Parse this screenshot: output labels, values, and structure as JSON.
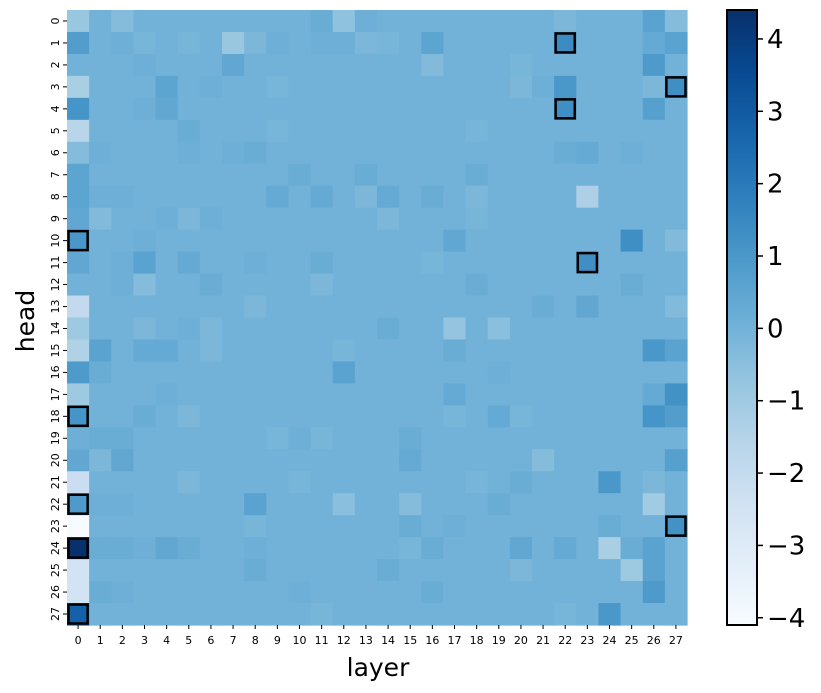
{
  "chart_data": {
    "type": "heatmap",
    "xlabel": "layer",
    "ylabel": "head",
    "x": [
      0,
      1,
      2,
      3,
      4,
      5,
      6,
      7,
      8,
      9,
      10,
      11,
      12,
      13,
      14,
      15,
      16,
      17,
      18,
      19,
      20,
      21,
      22,
      23,
      24,
      25,
      26,
      27
    ],
    "y": [
      0,
      1,
      2,
      3,
      4,
      5,
      6,
      7,
      8,
      9,
      10,
      11,
      12,
      13,
      14,
      15,
      16,
      17,
      18,
      19,
      20,
      21,
      22,
      23,
      24,
      25,
      26,
      27
    ],
    "colorbar": {
      "range": [
        -4.1,
        4.4
      ],
      "ticks": [
        -4,
        -3,
        -2,
        -1,
        0,
        1,
        2,
        3,
        4
      ],
      "tick_labels": [
        "−4",
        "−3",
        "−2",
        "−1",
        "0",
        "1",
        "2",
        "3",
        "4"
      ],
      "colormap": "Blues"
    },
    "values": [
      [
        -0.8,
        0.0,
        -0.4,
        0.0,
        0.0,
        0.0,
        0.0,
        0.0,
        0.0,
        0.0,
        0.0,
        0.2,
        -0.6,
        0.1,
        0.0,
        0.0,
        0.0,
        0.0,
        0.0,
        0.0,
        0.0,
        0.0,
        -0.2,
        0.0,
        0.0,
        0.0,
        0.6,
        -0.4
      ],
      [
        0.8,
        0.0,
        0.1,
        -0.1,
        0.0,
        -0.1,
        0.0,
        -0.8,
        -0.2,
        0.1,
        0.0,
        0.1,
        0.1,
        -0.2,
        -0.1,
        0.0,
        0.5,
        0.0,
        0.0,
        0.0,
        0.0,
        0.0,
        1.4,
        0.0,
        0.0,
        0.0,
        0.3,
        0.6
      ],
      [
        0.0,
        0.0,
        0.0,
        0.1,
        0.0,
        0.0,
        0.0,
        0.4,
        0.0,
        0.0,
        0.0,
        0.0,
        0.0,
        0.0,
        0.0,
        0.0,
        -0.3,
        0.0,
        0.0,
        0.0,
        -0.1,
        0.0,
        0.0,
        0.0,
        0.0,
        0.0,
        0.9,
        0.0
      ],
      [
        -1.2,
        0.0,
        0.0,
        0.0,
        0.5,
        0.0,
        0.1,
        0.0,
        0.0,
        -0.1,
        0.0,
        0.0,
        0.0,
        0.0,
        0.0,
        0.0,
        0.0,
        0.0,
        0.0,
        0.0,
        -0.2,
        0.1,
        1.0,
        0.0,
        0.0,
        0.0,
        -0.2,
        1.3
      ],
      [
        1.1,
        0.0,
        0.0,
        0.1,
        0.4,
        0.0,
        0.0,
        0.0,
        0.0,
        0.0,
        0.0,
        0.0,
        0.0,
        0.0,
        0.0,
        0.0,
        0.0,
        0.0,
        0.0,
        0.0,
        0.0,
        0.0,
        1.3,
        0.0,
        0.0,
        0.0,
        0.7,
        0.0
      ],
      [
        -1.6,
        0.0,
        0.0,
        0.0,
        0.0,
        0.2,
        0.0,
        0.0,
        0.0,
        -0.1,
        0.0,
        0.0,
        0.0,
        0.0,
        0.0,
        0.0,
        0.0,
        0.0,
        -0.1,
        0.0,
        0.0,
        0.0,
        0.0,
        0.0,
        0.0,
        0.0,
        0.0,
        0.0
      ],
      [
        -0.4,
        0.1,
        0.0,
        0.0,
        0.0,
        0.1,
        0.0,
        0.1,
        0.2,
        0.0,
        0.0,
        0.0,
        0.0,
        0.0,
        0.0,
        0.0,
        0.0,
        0.0,
        0.0,
        0.0,
        0.0,
        0.0,
        0.2,
        0.3,
        0.0,
        0.1,
        0.0,
        0.0
      ],
      [
        0.5,
        0.0,
        0.0,
        0.0,
        0.0,
        0.0,
        0.0,
        0.0,
        0.0,
        0.0,
        0.2,
        0.0,
        0.0,
        0.2,
        0.0,
        0.0,
        0.0,
        0.0,
        0.2,
        0.0,
        0.0,
        0.0,
        0.0,
        0.0,
        0.0,
        0.0,
        0.0,
        0.0
      ],
      [
        0.5,
        0.1,
        0.1,
        0.0,
        0.0,
        0.0,
        0.0,
        0.0,
        0.0,
        0.3,
        0.0,
        0.3,
        0.0,
        -0.2,
        0.3,
        0.0,
        0.2,
        0.0,
        -0.2,
        0.0,
        0.0,
        0.0,
        0.0,
        -1.3,
        0.0,
        0.0,
        0.0,
        0.0
      ],
      [
        0.4,
        -0.3,
        0.0,
        0.0,
        0.1,
        -0.2,
        0.1,
        0.0,
        0.0,
        0.0,
        0.0,
        0.0,
        0.0,
        0.0,
        -0.2,
        0.0,
        0.0,
        0.0,
        -0.1,
        0.0,
        0.0,
        0.0,
        0.0,
        0.0,
        0.0,
        0.0,
        0.0,
        0.0
      ],
      [
        1.0,
        0.0,
        0.0,
        0.1,
        0.0,
        0.0,
        0.0,
        0.0,
        0.0,
        0.0,
        0.0,
        0.0,
        0.0,
        0.0,
        0.0,
        0.0,
        0.0,
        0.4,
        0.0,
        0.0,
        0.0,
        0.0,
        0.0,
        0.0,
        0.0,
        1.3,
        0.0,
        -0.3
      ],
      [
        0.4,
        0.0,
        0.1,
        0.6,
        0.0,
        0.3,
        0.0,
        0.0,
        0.1,
        0.0,
        0.0,
        0.2,
        0.0,
        0.0,
        0.0,
        0.0,
        -0.1,
        0.0,
        0.0,
        0.0,
        0.0,
        0.0,
        0.0,
        1.3,
        0.0,
        0.0,
        0.0,
        0.0
      ],
      [
        0.0,
        0.0,
        0.1,
        -0.4,
        0.0,
        0.0,
        0.2,
        0.0,
        0.0,
        0.0,
        0.0,
        -0.2,
        0.0,
        0.0,
        0.0,
        0.0,
        0.0,
        0.0,
        0.2,
        0.0,
        0.0,
        0.0,
        0.0,
        0.0,
        0.0,
        0.2,
        0.0,
        0.0
      ],
      [
        -1.9,
        0.0,
        0.0,
        0.0,
        0.0,
        0.0,
        0.0,
        0.0,
        -0.2,
        0.0,
        0.0,
        0.0,
        0.0,
        0.0,
        0.0,
        0.0,
        0.0,
        0.0,
        0.0,
        0.0,
        0.0,
        0.2,
        0.0,
        0.4,
        0.0,
        0.0,
        0.0,
        -0.3
      ],
      [
        -0.9,
        0.0,
        0.0,
        -0.2,
        0.0,
        0.1,
        -0.2,
        0.0,
        0.0,
        0.0,
        0.0,
        0.0,
        0.0,
        0.0,
        0.2,
        0.0,
        0.0,
        -0.7,
        0.0,
        -0.5,
        0.0,
        0.0,
        0.0,
        0.0,
        0.0,
        0.0,
        0.0,
        0.0
      ],
      [
        -1.4,
        0.6,
        0.0,
        0.3,
        0.3,
        0.0,
        -0.2,
        0.0,
        0.0,
        0.0,
        0.0,
        0.0,
        -0.1,
        0.0,
        0.0,
        0.0,
        0.0,
        0.2,
        0.0,
        0.0,
        0.0,
        0.0,
        0.0,
        0.0,
        0.0,
        0.0,
        1.0,
        0.6
      ],
      [
        0.9,
        0.2,
        0.0,
        0.0,
        0.0,
        0.0,
        0.0,
        0.0,
        0.0,
        0.0,
        0.0,
        0.0,
        0.6,
        0.0,
        0.0,
        0.0,
        0.0,
        0.0,
        0.0,
        0.1,
        0.0,
        0.0,
        0.0,
        0.0,
        0.0,
        0.0,
        0.0,
        0.0
      ],
      [
        -0.9,
        0.0,
        0.0,
        0.0,
        0.1,
        0.0,
        0.0,
        0.0,
        0.0,
        0.0,
        0.0,
        0.0,
        0.0,
        0.0,
        0.0,
        0.0,
        0.0,
        0.3,
        0.0,
        0.0,
        0.0,
        0.0,
        0.0,
        0.0,
        0.0,
        0.0,
        0.3,
        1.2
      ],
      [
        1.1,
        0.0,
        0.0,
        0.2,
        0.0,
        -0.2,
        0.0,
        0.0,
        0.0,
        0.0,
        0.0,
        0.0,
        0.0,
        0.0,
        0.0,
        0.0,
        0.0,
        -0.1,
        0.0,
        0.3,
        -0.1,
        0.0,
        0.0,
        0.0,
        0.0,
        0.0,
        1.1,
        0.8
      ],
      [
        0.1,
        0.2,
        0.2,
        0.0,
        0.0,
        0.0,
        0.0,
        0.0,
        0.0,
        -0.1,
        0.1,
        -0.1,
        0.0,
        0.0,
        0.0,
        0.2,
        0.0,
        0.0,
        0.0,
        0.0,
        0.0,
        0.0,
        0.0,
        0.0,
        0.0,
        0.0,
        0.0,
        0.0
      ],
      [
        0.4,
        -0.2,
        0.4,
        0.0,
        0.0,
        0.0,
        0.0,
        0.0,
        0.0,
        0.0,
        0.0,
        0.0,
        0.0,
        0.0,
        0.0,
        0.3,
        0.0,
        0.0,
        0.0,
        0.0,
        0.0,
        -0.4,
        0.0,
        0.0,
        0.0,
        0.0,
        0.0,
        0.7
      ],
      [
        -2.2,
        0.0,
        0.0,
        0.0,
        0.0,
        -0.2,
        0.0,
        0.0,
        0.0,
        0.0,
        -0.1,
        0.0,
        0.0,
        0.0,
        0.0,
        0.0,
        0.0,
        0.0,
        -0.1,
        0.0,
        0.2,
        0.0,
        0.0,
        0.0,
        1.0,
        0.0,
        -0.2,
        0.0
      ],
      [
        0.9,
        0.1,
        0.1,
        0.0,
        0.0,
        0.0,
        0.0,
        0.0,
        0.6,
        0.0,
        0.0,
        0.0,
        -0.5,
        0.0,
        0.0,
        -0.4,
        0.0,
        0.0,
        0.0,
        0.2,
        0.0,
        0.0,
        0.0,
        0.0,
        0.0,
        0.0,
        -1.0,
        0.0
      ],
      [
        -4.1,
        0.0,
        0.0,
        0.0,
        0.0,
        0.0,
        0.0,
        0.0,
        -0.1,
        0.0,
        0.0,
        0.0,
        0.0,
        0.0,
        0.0,
        0.2,
        0.0,
        0.1,
        0.0,
        0.0,
        0.0,
        0.0,
        0.0,
        0.0,
        0.2,
        0.0,
        0.0,
        1.2
      ],
      [
        4.4,
        0.2,
        0.2,
        0.1,
        0.4,
        0.2,
        0.0,
        0.0,
        0.1,
        0.0,
        0.0,
        0.0,
        0.0,
        0.0,
        0.0,
        -0.1,
        0.2,
        0.0,
        0.0,
        0.0,
        0.4,
        0.0,
        0.3,
        0.0,
        -1.2,
        0.2,
        0.6,
        0.0
      ],
      [
        -2.5,
        0.0,
        0.0,
        0.0,
        0.0,
        0.0,
        0.0,
        0.0,
        0.2,
        0.0,
        0.0,
        0.0,
        0.0,
        0.0,
        0.2,
        0.0,
        0.0,
        0.0,
        0.0,
        0.0,
        -0.2,
        0.0,
        0.0,
        0.0,
        0.0,
        -0.9,
        0.6,
        0.0
      ],
      [
        -2.5,
        0.2,
        0.1,
        0.0,
        0.0,
        0.0,
        0.0,
        0.0,
        0.0,
        0.0,
        0.1,
        0.0,
        0.0,
        0.0,
        0.0,
        0.0,
        0.2,
        0.0,
        0.0,
        0.0,
        0.0,
        0.0,
        0.0,
        0.0,
        0.0,
        0.0,
        0.9,
        0.0
      ],
      [
        2.8,
        0.0,
        0.0,
        0.0,
        0.0,
        0.0,
        0.0,
        0.0,
        0.0,
        0.0,
        0.0,
        -0.1,
        0.0,
        0.0,
        0.0,
        0.0,
        0.0,
        0.0,
        0.0,
        0.0,
        0.0,
        0.0,
        -0.1,
        0.0,
        1.0,
        0.0,
        0.0,
        0.0
      ]
    ],
    "highlighted_cells": [
      {
        "layer": 22,
        "head": 1
      },
      {
        "layer": 27,
        "head": 3
      },
      {
        "layer": 22,
        "head": 4
      },
      {
        "layer": 0,
        "head": 10
      },
      {
        "layer": 23,
        "head": 11
      },
      {
        "layer": 0,
        "head": 18
      },
      {
        "layer": 0,
        "head": 22
      },
      {
        "layer": 27,
        "head": 23
      },
      {
        "layer": 0,
        "head": 24
      },
      {
        "layer": 0,
        "head": 27
      }
    ]
  }
}
